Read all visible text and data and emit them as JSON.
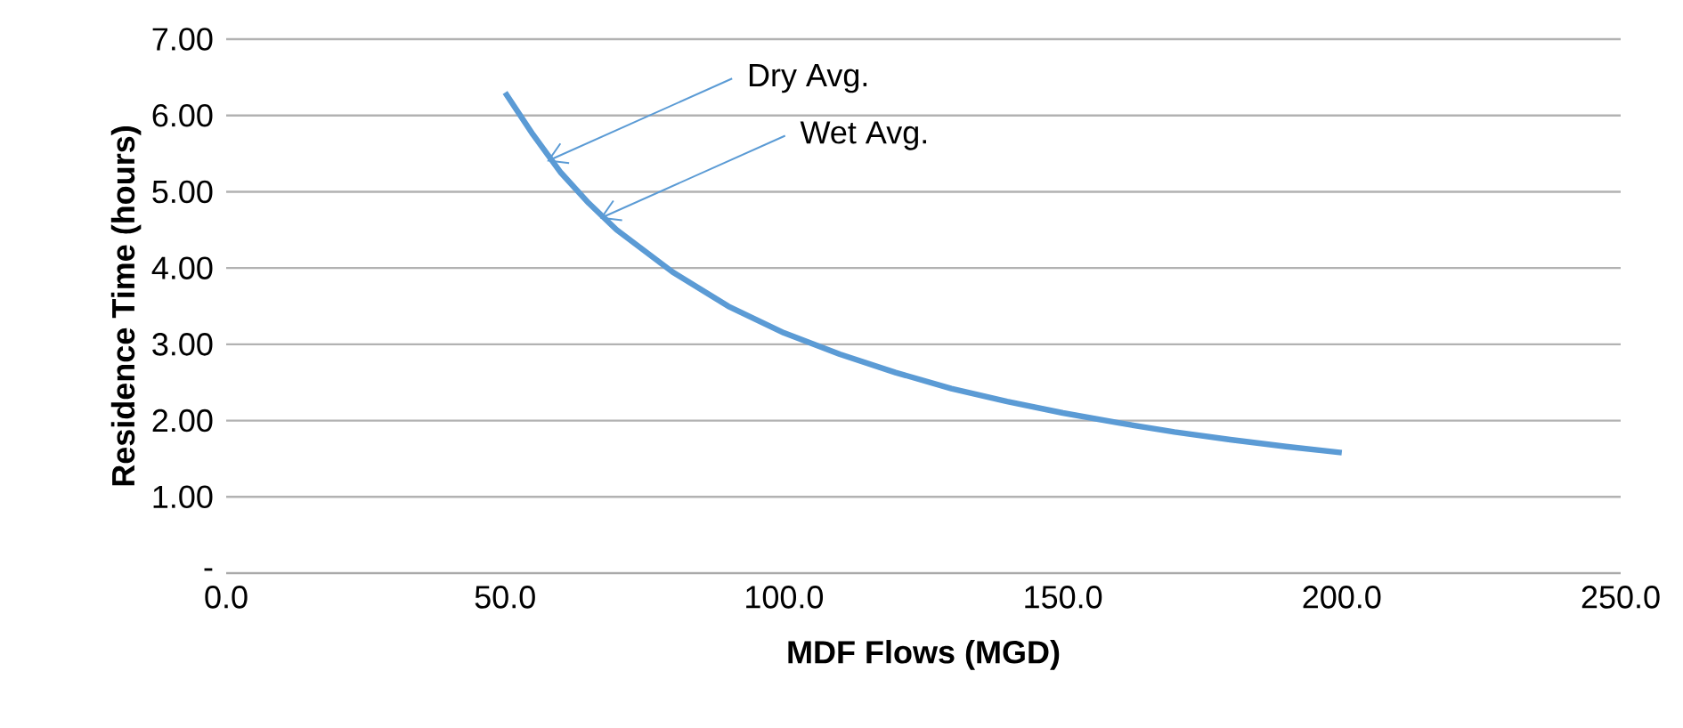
{
  "chart_data": {
    "type": "line",
    "xlabel": "MDF Flows (MGD)",
    "ylabel": "Residence Time (hours)",
    "x": [
      50,
      55,
      60,
      65,
      70,
      80,
      90,
      100,
      110,
      120,
      130,
      140,
      150,
      160,
      170,
      180,
      190,
      200
    ],
    "series": [
      {
        "color": "#5b9bd5",
        "values": [
          6.3,
          5.75,
          5.25,
          4.85,
          4.5,
          3.95,
          3.5,
          3.15,
          2.87,
          2.63,
          2.42,
          2.25,
          2.1,
          1.97,
          1.85,
          1.75,
          1.66,
          1.58
        ]
      }
    ],
    "xlim": [
      0,
      250
    ],
    "ylim": [
      0,
      7
    ],
    "xticks": [
      {
        "value": 0,
        "label": "0.0"
      },
      {
        "value": 50,
        "label": "50.0"
      },
      {
        "value": 100,
        "label": "100.0"
      },
      {
        "value": 150,
        "label": "150.0"
      },
      {
        "value": 200,
        "label": "200.0"
      },
      {
        "value": 250,
        "label": "250.0"
      }
    ],
    "yticks": [
      {
        "value": 0,
        "label": "-"
      },
      {
        "value": 1,
        "label": "1.00"
      },
      {
        "value": 2,
        "label": "2.00"
      },
      {
        "value": 3,
        "label": "3.00"
      },
      {
        "value": 4,
        "label": "4.00"
      },
      {
        "value": 5,
        "label": "5.00"
      },
      {
        "value": 6,
        "label": "6.00"
      },
      {
        "value": 7,
        "label": "7.00"
      }
    ],
    "grid": "y",
    "marker": "none",
    "line_style": "solid",
    "annotations": [
      {
        "text": "Dry Avg.",
        "x": 57.5,
        "y": 5.4
      },
      {
        "text": "Wet Avg.",
        "x": 67,
        "y": 4.65
      }
    ]
  }
}
